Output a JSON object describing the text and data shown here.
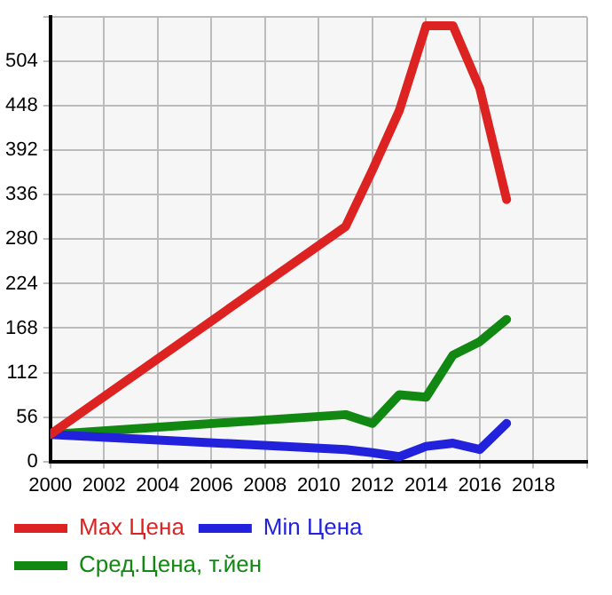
{
  "chart_data": {
    "type": "line",
    "x": [
      2000,
      2011,
      2012,
      2013,
      2014,
      2015,
      2016,
      2017
    ],
    "series": [
      {
        "name": "Max Цена",
        "color": "#dd2222",
        "values": [
          34,
          296,
          367,
          442,
          549,
          549,
          470,
          330
        ]
      },
      {
        "name": "Min Цена",
        "color": "#2222dd",
        "values": [
          34,
          15,
          11,
          6,
          19,
          23,
          15,
          48
        ]
      },
      {
        "name": "Сред.Цена, т.йен",
        "color": "#118811",
        "values": [
          34,
          59,
          48,
          84,
          81,
          134,
          151,
          179
        ]
      }
    ],
    "xlim": [
      2000,
      2020
    ],
    "xticks": [
      2000,
      2002,
      2004,
      2006,
      2008,
      2010,
      2012,
      2014,
      2016,
      2018,
      {
        "value": 2020,
        "label": null
      }
    ],
    "ylim": [
      0,
      560
    ],
    "yticks": [
      0,
      56,
      112,
      168,
      224,
      280,
      336,
      392,
      448,
      504,
      {
        "value": 560,
        "label": null
      }
    ],
    "grid": true,
    "legend": "bottom left",
    "marker": "none",
    "line_style": "solid"
  }
}
